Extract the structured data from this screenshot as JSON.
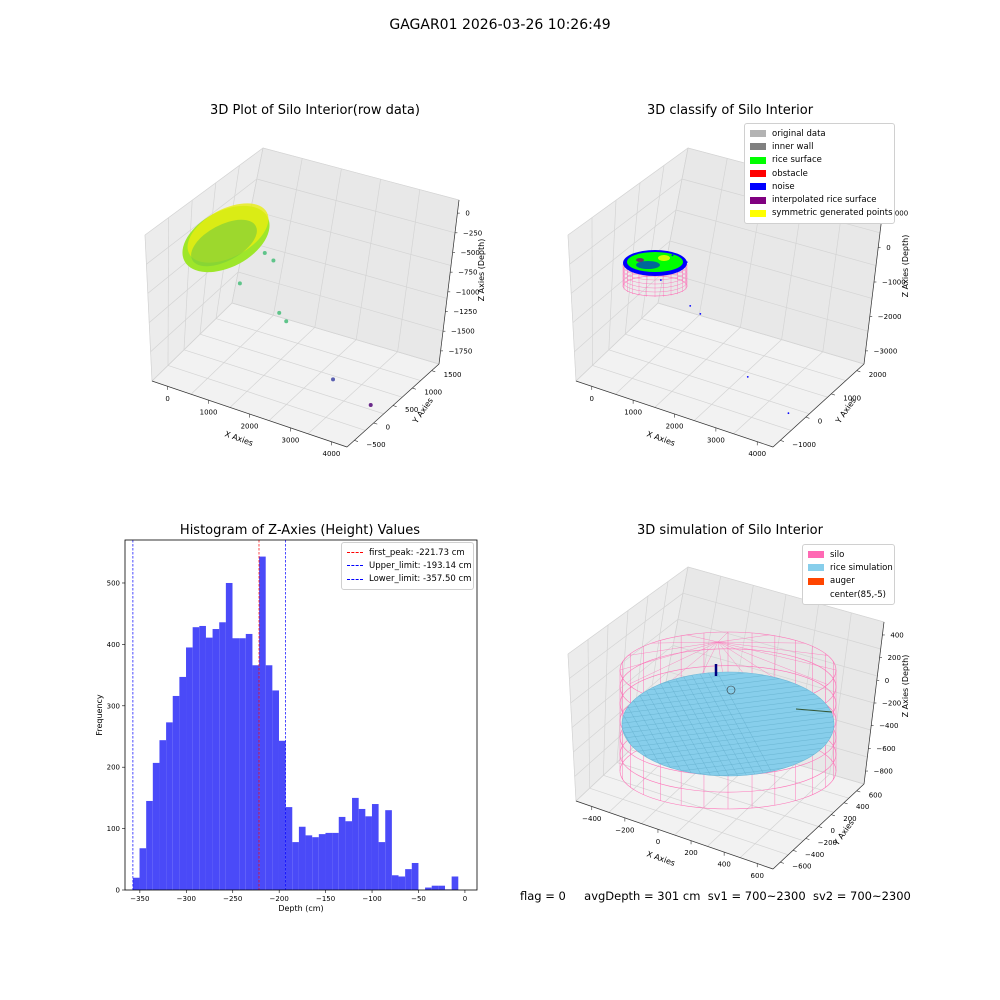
{
  "figure": {
    "suptitle": "GAGAR01 2026-03-26 10:26:49",
    "footer": {
      "flag": "flag = 0",
      "avg_depth": "avgDepth = 301 cm",
      "sv1": "sv1 = 700~2300",
      "sv2": "sv2 = 700~2300"
    }
  },
  "chart_data": [
    {
      "type": "scatter",
      "title": "3D Plot of Silo Interior(row data)",
      "xlabel": "X Axies",
      "ylabel": "Y Axies",
      "zlabel": "Z Axies (Depth)",
      "x_ticks": [
        "0",
        "1000",
        "2000",
        "3000",
        "4000"
      ],
      "y_ticks": [
        "1500",
        "1000",
        "500",
        "0",
        "−500"
      ],
      "z_ticks": [
        "0",
        "−250",
        "−500",
        "−750",
        "−1000",
        "−1250",
        "−1500",
        "−1750"
      ],
      "xlim": [
        -400,
        4100
      ],
      "ylim": [
        -600,
        1600
      ],
      "zlim": [
        -1950,
        100
      ],
      "colors": {
        "surface": "#9ee62a",
        "surface_dark": "#7cce3a",
        "high": "#e8ee10",
        "mid": "#5fc48a",
        "low": "#5a5fb0",
        "deep": "#6a2a8a"
      },
      "outlier_points": [
        {
          "x": 1050,
          "y": 900,
          "z": -600,
          "c": "mid"
        },
        {
          "x": 1200,
          "y": 950,
          "z": -700,
          "c": "mid"
        },
        {
          "x": 700,
          "y": 600,
          "z": -950,
          "c": "mid"
        },
        {
          "x": 1500,
          "y": 700,
          "z": -1250,
          "c": "mid"
        },
        {
          "x": 1700,
          "y": 650,
          "z": -1300,
          "c": "mid"
        },
        {
          "x": 3000,
          "y": 350,
          "z": -1700,
          "c": "low"
        },
        {
          "x": 3900,
          "y": 300,
          "z": -1850,
          "c": "deep"
        }
      ]
    },
    {
      "type": "scatter",
      "title": "3D classify of Silo Interior",
      "xlabel": "X Axies",
      "ylabel": "Y Axies",
      "zlabel": "Z Axies (Depth)",
      "x_ticks": [
        "0",
        "1000",
        "2000",
        "3000",
        "4000"
      ],
      "y_ticks": [
        "2000",
        "1000",
        "0",
        "−1000"
      ],
      "z_ticks": [
        "1000",
        "0",
        "−1000",
        "−2000",
        "−3000"
      ],
      "xlim": [
        -400,
        4100
      ],
      "ylim": [
        -1500,
        2500
      ],
      "zlim": [
        -3200,
        1100
      ],
      "legend": [
        {
          "label": "original data",
          "color": "#b3b3b3"
        },
        {
          "label": "inner wall",
          "color": "#808080"
        },
        {
          "label": "rice surface",
          "color": "#00ff00"
        },
        {
          "label": "obstacle",
          "color": "#ff0000"
        },
        {
          "label": "noise",
          "color": "#0000ff"
        },
        {
          "label": "interpolated rice surface",
          "color": "#800080"
        },
        {
          "label": "symmetric generated points",
          "color": "#ffff00"
        }
      ],
      "noise_points": [
        {
          "x": 900,
          "y": 700,
          "z": -200
        },
        {
          "x": 1200,
          "y": 750,
          "z": -300
        },
        {
          "x": 700,
          "y": 500,
          "z": -900
        },
        {
          "x": 1400,
          "y": 400,
          "z": -1300
        },
        {
          "x": 1650,
          "y": 350,
          "z": -1400
        },
        {
          "x": 3000,
          "y": -300,
          "z": -2300
        },
        {
          "x": 3950,
          "y": -400,
          "z": -2900
        }
      ]
    },
    {
      "type": "bar",
      "title": "Histogram of Z-Axies (Height) Values",
      "xlabel": "Depth (cm)",
      "ylabel": "Frequency",
      "bar_color": "#4a4af8",
      "xlim": [
        -366,
        13
      ],
      "ylim": [
        0,
        570
      ],
      "x_ticks": [
        -350,
        -300,
        -250,
        -200,
        -150,
        -100,
        -50,
        0
      ],
      "x_tick_labels": [
        "−350",
        "−300",
        "−250",
        "−200",
        "−150",
        "−100",
        "−50",
        "0"
      ],
      "y_ticks": [
        0,
        100,
        200,
        300,
        400,
        500
      ],
      "bin_start": -357.5,
      "bin_width": 7.15,
      "values": [
        20,
        68,
        145,
        207,
        244,
        273,
        316,
        347,
        395,
        428,
        430,
        411,
        425,
        436,
        500,
        410,
        410,
        417,
        366,
        543,
        366,
        325,
        243,
        135,
        78,
        103,
        89,
        86,
        91,
        93,
        93,
        119,
        112,
        150,
        132,
        120,
        140,
        78,
        130,
        24,
        22,
        34,
        44,
        0,
        4,
        7,
        7,
        1,
        22
      ],
      "vlines": [
        {
          "x": -221.73,
          "label": "first_peak: -221.73 cm",
          "color": "#ff0000"
        },
        {
          "x": -193.14,
          "label": "Upper_limit: -193.14 cm",
          "color": "#0000ff"
        },
        {
          "x": -357.5,
          "label": "Lower_limit: -357.50 cm",
          "color": "#0000ff"
        }
      ]
    },
    {
      "type": "scatter",
      "title": "3D simulation of Silo Interior",
      "xlabel": "X Axies",
      "ylabel": "Y Axies",
      "zlabel": "Z Axies (Depth)",
      "x_ticks": [
        "−400",
        "−200",
        "0",
        "200",
        "400",
        "600"
      ],
      "y_ticks": [
        "600",
        "400",
        "200",
        "0",
        "−200",
        "−400",
        "−600"
      ],
      "z_ticks": [
        "400",
        "200",
        "0",
        "−200",
        "−400",
        "−600",
        "−800"
      ],
      "xlim": [
        -600,
        750
      ],
      "ylim": [
        -700,
        700
      ],
      "zlim": [
        -950,
        450
      ],
      "legend": [
        {
          "label": "silo",
          "color": "#ff69b4"
        },
        {
          "label": "rice simulation",
          "color": "#87ceeb"
        },
        {
          "label": "auger",
          "color": "#ff4500"
        },
        {
          "label": "center(85,-5)",
          "color": "#ffffff"
        }
      ],
      "center": {
        "x": 85,
        "y": -5
      }
    }
  ]
}
